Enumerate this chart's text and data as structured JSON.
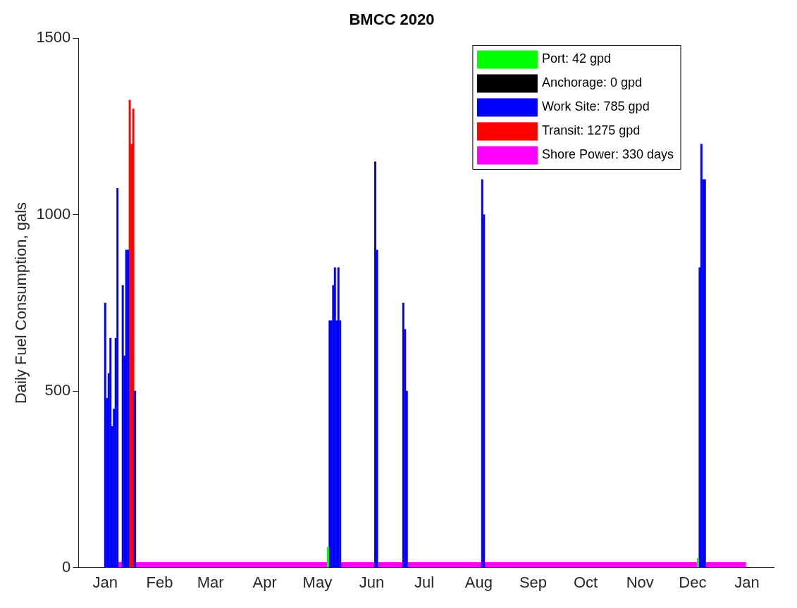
{
  "chart_data": {
    "type": "bar",
    "title": "BMCC 2020",
    "ylabel": "Daily Fuel Consumption, gals",
    "xlim": [
      "2020-01-01",
      "2021-01-01"
    ],
    "xticks": [
      {
        "value": "2020-01-01",
        "label": "Jan"
      },
      {
        "value": "2020-02-01",
        "label": "Feb"
      },
      {
        "value": "2020-03-01",
        "label": "Mar"
      },
      {
        "value": "2020-04-01",
        "label": "Apr"
      },
      {
        "value": "2020-05-01",
        "label": "May"
      },
      {
        "value": "2020-06-01",
        "label": "Jun"
      },
      {
        "value": "2020-07-01",
        "label": "Jul"
      },
      {
        "value": "2020-08-01",
        "label": "Aug"
      },
      {
        "value": "2020-09-01",
        "label": "Sep"
      },
      {
        "value": "2020-10-01",
        "label": "Oct"
      },
      {
        "value": "2020-11-01",
        "label": "Nov"
      },
      {
        "value": "2020-12-01",
        "label": "Dec"
      },
      {
        "value": "2021-01-01",
        "label": "Jan"
      }
    ],
    "ylim": [
      0,
      1500
    ],
    "yticks": [
      0,
      500,
      1000,
      1500
    ],
    "legend": "top right",
    "series": [
      {
        "name": "Port: 42 gpd",
        "color": "#00ff00",
        "x": [
          "2020-05-07",
          "2020-12-04"
        ],
        "values": [
          58,
          26
        ]
      },
      {
        "name": "Anchorage: 0 gpd",
        "color": "#000000"
      },
      {
        "name": "Work Site: 785 gpd",
        "color": "#0000ff",
        "x": [
          "2020-01-01",
          "2020-01-02",
          "2020-01-03",
          "2020-01-04",
          "2020-01-05",
          "2020-01-06",
          "2020-01-07",
          "2020-01-08",
          "2020-01-11",
          "2020-01-12",
          "2020-01-13",
          "2020-01-14",
          "2020-01-18",
          "2020-05-08",
          "2020-05-09",
          "2020-05-10",
          "2020-05-11",
          "2020-05-12",
          "2020-05-13",
          "2020-05-14",
          "2020-06-03",
          "2020-06-04",
          "2020-06-19",
          "2020-06-20",
          "2020-06-21",
          "2020-08-03",
          "2020-08-04",
          "2020-12-05",
          "2020-12-06",
          "2020-12-07",
          "2020-12-08"
        ],
        "values": [
          750,
          480,
          550,
          650,
          400,
          450,
          650,
          1075,
          800,
          600,
          900,
          900,
          500,
          700,
          700,
          800,
          850,
          700,
          850,
          700,
          1150,
          900,
          750,
          675,
          500,
          1100,
          1000,
          850,
          1200,
          1100,
          1100
        ]
      },
      {
        "name": "Transit: 1275 gpd",
        "color": "#ff0000",
        "x": [
          "2020-01-15",
          "2020-01-16",
          "2020-01-17"
        ],
        "values": [
          1325,
          1200,
          1300
        ]
      },
      {
        "color": "#ff00ff",
        "x": [
          "2020-01-09",
          "2020-01-10"
        ],
        "values": [
          15,
          15
        ]
      },
      {
        "name": "Shore Power: 330 days",
        "type": "area",
        "color": "#ff00ff",
        "x": [
          "2020-01-18T12:00",
          "2020-05-06T12:00",
          "2020-05-10",
          "2020-05-14T12:00",
          "2020-06-02T12:00",
          "2020-06-03T12:00",
          "2020-06-04T12:00",
          "2020-06-18T12:00",
          "2020-06-20",
          "2020-06-21T12:00",
          "2020-08-02T12:00",
          "2020-08-03T12:00",
          "2020-08-04T12:00",
          "2020-12-03T12:00",
          "2020-12-06",
          "2020-12-08T12:00",
          "2020-12-31T12:00"
        ],
        "values": [
          15,
          15,
          null,
          15,
          15,
          null,
          15,
          15,
          null,
          15,
          15,
          null,
          15,
          15,
          null,
          15,
          15
        ]
      }
    ]
  }
}
